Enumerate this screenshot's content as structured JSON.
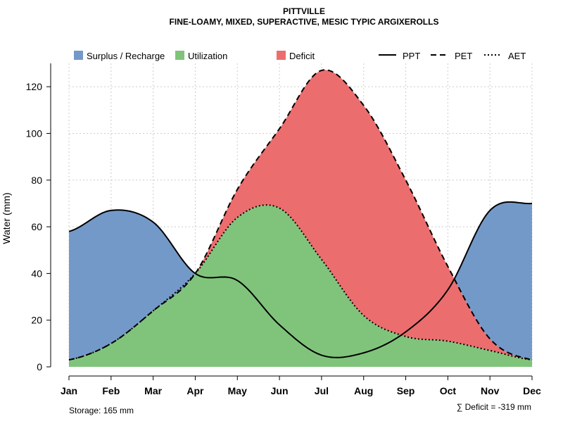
{
  "chart_data": {
    "type": "area",
    "title": "PITTVILLE",
    "subtitle": "FINE-LOAMY, MIXED, SUPERACTIVE, MESIC TYPIC ARGIXEROLLS",
    "ylabel": "Water (mm)",
    "xlabel": "",
    "ylim": [
      0,
      130
    ],
    "yticks": [
      0,
      20,
      40,
      60,
      80,
      100,
      120
    ],
    "grid": true,
    "categories": [
      "Jan",
      "Feb",
      "Mar",
      "Apr",
      "May",
      "Jun",
      "Jul",
      "Aug",
      "Sep",
      "Oct",
      "Nov",
      "Dec"
    ],
    "series": [
      {
        "name": "PPT",
        "style": "solid",
        "values": [
          58,
          67,
          62,
          40,
          37,
          18,
          5,
          6,
          15,
          33,
          67,
          70
        ]
      },
      {
        "name": "PET",
        "style": "dashed",
        "values": [
          3,
          10,
          24,
          40,
          76,
          102,
          127,
          112,
          80,
          43,
          12,
          3
        ]
      },
      {
        "name": "AET",
        "style": "dotted",
        "values": [
          3,
          10,
          24,
          40,
          64,
          68,
          46,
          22,
          13,
          11,
          7,
          3
        ]
      }
    ],
    "legend": {
      "placement": "top",
      "area_items": [
        {
          "label": "Surplus / Recharge",
          "color": "#7399C8"
        },
        {
          "label": "Utilization",
          "color": "#80C47C"
        },
        {
          "label": "Deficit",
          "color": "#EC6D6E"
        }
      ],
      "line_items": [
        {
          "label": "PPT",
          "style": "solid"
        },
        {
          "label": "PET",
          "style": "dashed"
        },
        {
          "label": "AET",
          "style": "dotted"
        }
      ]
    },
    "annotations": {
      "storage": "Storage: 165 mm",
      "deficit": "∑ Deficit = -319 mm"
    }
  }
}
